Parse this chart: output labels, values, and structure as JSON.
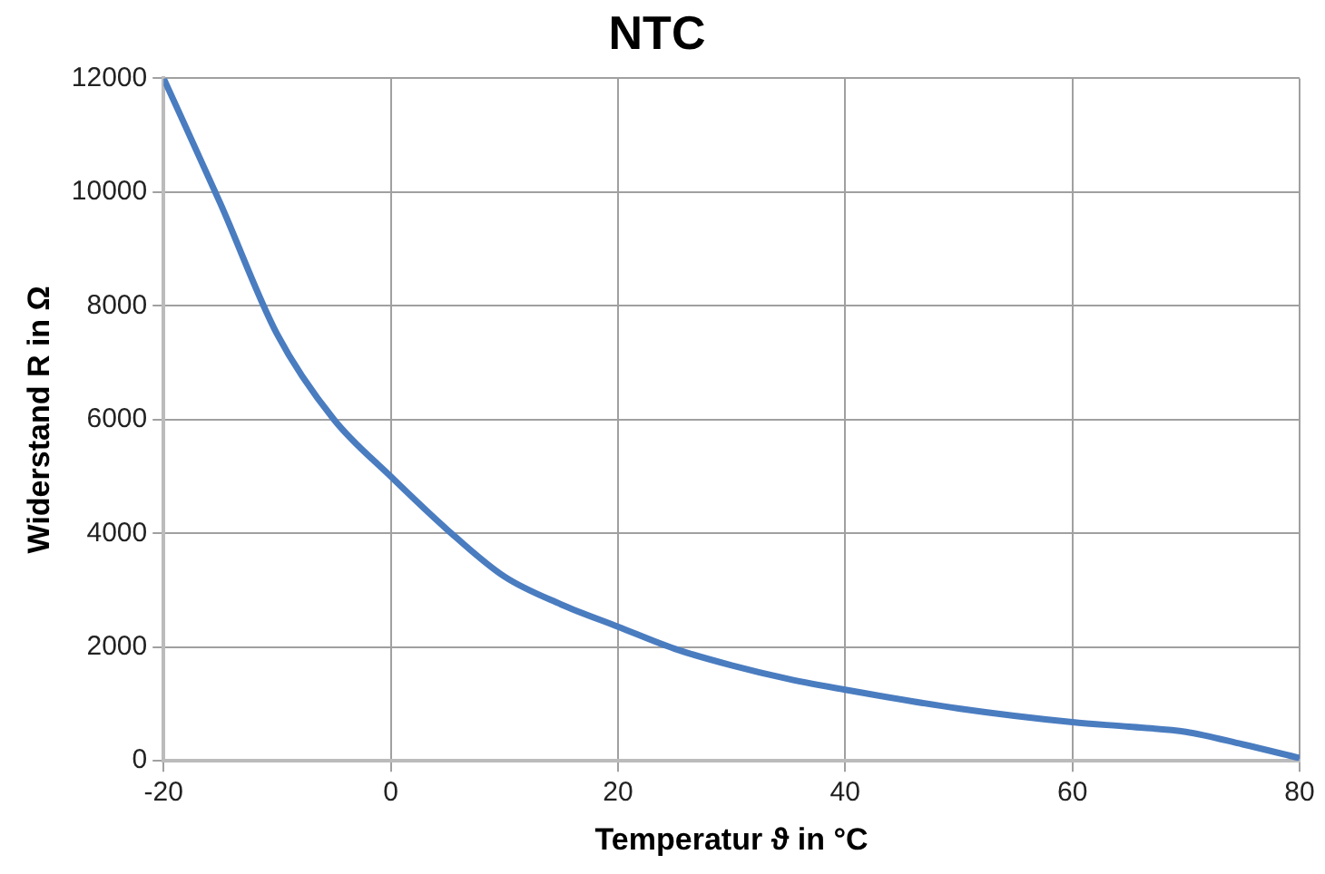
{
  "chart_data": {
    "type": "line",
    "title": "NTC",
    "xlabel": "Temperatur ϑ in °C",
    "ylabel": "Widerstand R in Ω",
    "x": [
      -20,
      -15,
      -10,
      -5,
      0,
      5,
      10,
      15,
      20,
      25,
      30,
      35,
      40,
      50,
      60,
      65,
      70,
      75,
      80
    ],
    "series": [
      {
        "color": "#4a7cc0",
        "values": [
          12000,
          9800,
          7500,
          6000,
          5000,
          4060,
          3240,
          2750,
          2360,
          1970,
          1680,
          1440,
          1250,
          920,
          680,
          600,
          510,
          290,
          50
        ]
      }
    ],
    "xlim": [
      -20,
      80
    ],
    "xticks": [
      -20,
      0,
      20,
      40,
      60,
      80
    ],
    "ylim": [
      0,
      12000
    ],
    "yticks": [
      0,
      2000,
      4000,
      6000,
      8000,
      10000,
      12000
    ],
    "grid": true,
    "legend": false,
    "marker": "none",
    "line_style": "solid"
  }
}
